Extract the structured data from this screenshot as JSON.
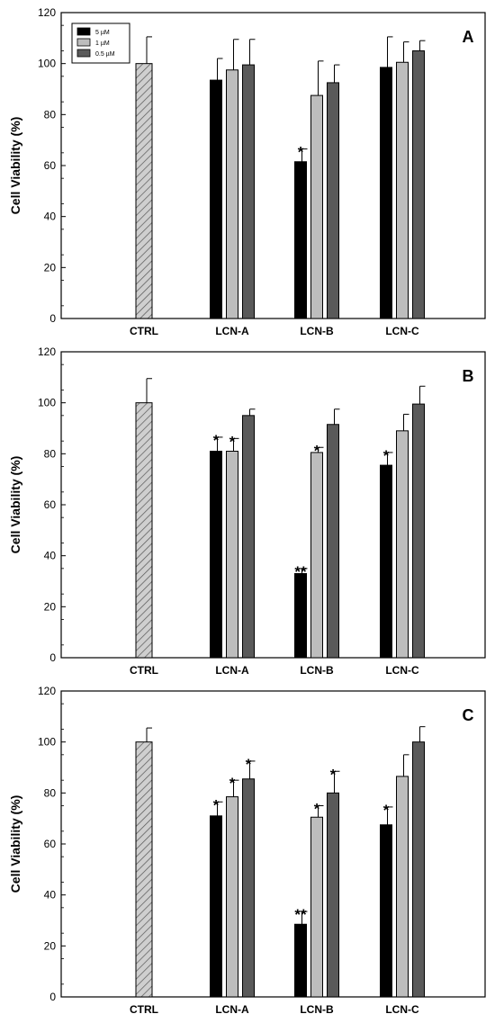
{
  "colors": {
    "series": [
      "#000000",
      "#bdbdbd",
      "#5a5a5a"
    ],
    "control_fill": "#c8c8c8",
    "axis": "#000000"
  },
  "chart_data": [
    {
      "type": "bar",
      "panel": "A",
      "ylabel": "Cell Viability (%)",
      "ylim": [
        0,
        120
      ],
      "yticks": [
        "0",
        "20",
        "40",
        "60",
        "80",
        "100",
        "120"
      ],
      "categories": [
        "CTRL",
        "LCN-A",
        "LCN-B",
        "LCN-C"
      ],
      "legend": {
        "position": "top-left",
        "entries": [
          "5 µM",
          "1 µM",
          "0.5 µM"
        ]
      },
      "control": {
        "category": "CTRL",
        "value": 100,
        "error": 10.5,
        "pattern": "hatched"
      },
      "series": [
        {
          "name": "5 µM",
          "values": [
            null,
            93.5,
            61.5,
            98.5
          ],
          "errors": [
            null,
            8.5,
            5,
            12
          ],
          "significance": [
            null,
            "",
            "*",
            ""
          ]
        },
        {
          "name": "1 µM",
          "values": [
            null,
            97.5,
            87.5,
            100.5
          ],
          "errors": [
            null,
            12,
            13.5,
            8
          ],
          "significance": [
            null,
            "",
            "",
            ""
          ]
        },
        {
          "name": "0.5 µM",
          "values": [
            null,
            99.5,
            92.5,
            105
          ],
          "errors": [
            null,
            10,
            7,
            4
          ],
          "significance": [
            null,
            "",
            "",
            ""
          ]
        }
      ]
    },
    {
      "type": "bar",
      "panel": "B",
      "ylabel": "Cell Viability (%)",
      "ylim": [
        0,
        120
      ],
      "yticks": [
        "0",
        "20",
        "40",
        "60",
        "80",
        "100",
        "120"
      ],
      "categories": [
        "CTRL",
        "LCN-A",
        "LCN-B",
        "LCN-C"
      ],
      "control": {
        "category": "CTRL",
        "value": 100,
        "error": 9.5,
        "pattern": "hatched"
      },
      "series": [
        {
          "name": "5 µM",
          "values": [
            null,
            81,
            33,
            75.5
          ],
          "errors": [
            null,
            5.5,
            2,
            5
          ],
          "significance": [
            null,
            "*",
            "**",
            "*"
          ]
        },
        {
          "name": "1 µM",
          "values": [
            null,
            81,
            80.5,
            89
          ],
          "errors": [
            null,
            5,
            2,
            6.5
          ],
          "significance": [
            null,
            "*",
            "*",
            ""
          ]
        },
        {
          "name": "0.5 µM",
          "values": [
            null,
            95,
            91.5,
            99.5
          ],
          "errors": [
            null,
            2.5,
            6,
            7
          ],
          "significance": [
            null,
            "",
            "",
            ""
          ]
        }
      ]
    },
    {
      "type": "bar",
      "panel": "C",
      "ylabel": "Cell Viability (%)",
      "ylim": [
        0,
        120
      ],
      "yticks": [
        "0",
        "20",
        "40",
        "60",
        "80",
        "100",
        "120"
      ],
      "categories": [
        "CTRL",
        "LCN-A",
        "LCN-B",
        "LCN-C"
      ],
      "control": {
        "category": "CTRL",
        "value": 100,
        "error": 5.5,
        "pattern": "hatched"
      },
      "series": [
        {
          "name": "5 µM",
          "values": [
            null,
            71,
            28.5,
            67.5
          ],
          "errors": [
            null,
            5.5,
            5,
            7
          ],
          "significance": [
            null,
            "*",
            "**",
            "*"
          ]
        },
        {
          "name": "1 µM",
          "values": [
            null,
            78.5,
            70.5,
            86.5
          ],
          "errors": [
            null,
            6.5,
            4.5,
            8.5
          ],
          "significance": [
            null,
            "*",
            "*",
            ""
          ]
        },
        {
          "name": "0.5 µM",
          "values": [
            null,
            85.5,
            80,
            100
          ],
          "errors": [
            null,
            7,
            8.5,
            6
          ],
          "significance": [
            null,
            "*",
            "*",
            ""
          ]
        }
      ]
    }
  ]
}
